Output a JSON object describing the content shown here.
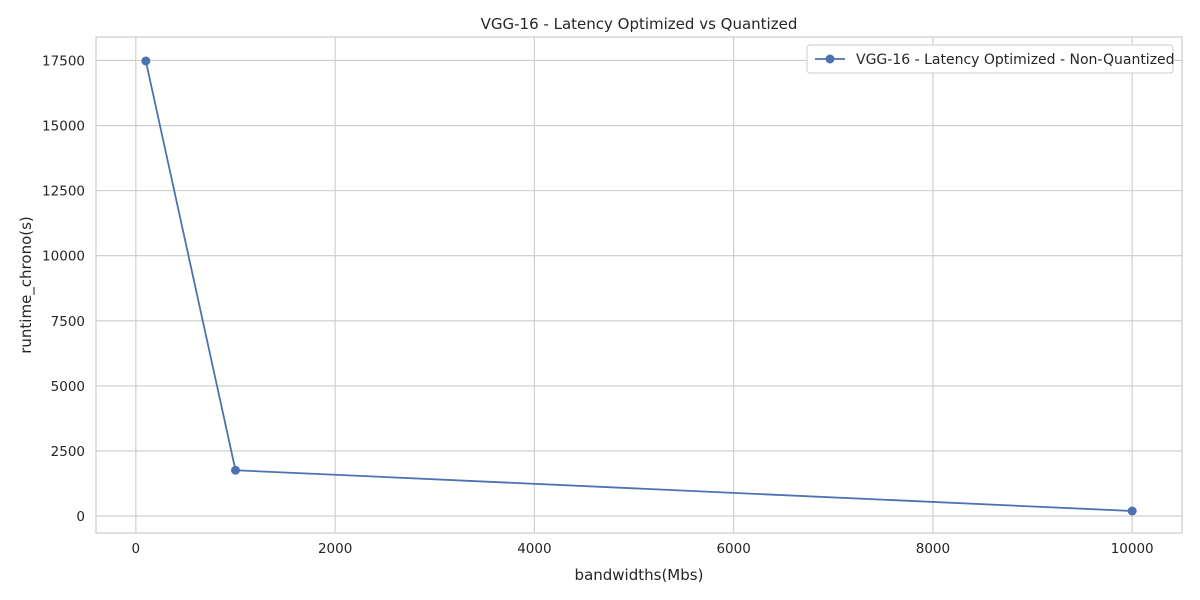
{
  "chart_data": {
    "type": "line",
    "title": "VGG-16 - Latency Optimized vs Quantized",
    "xlabel": "bandwidths(Mbs)",
    "ylabel": "runtime_chrono(s)",
    "xlim": [
      -400,
      10500
    ],
    "ylim": [
      -650,
      18400
    ],
    "xticks": [
      0,
      2000,
      4000,
      6000,
      8000,
      10000
    ],
    "yticks": [
      0,
      2500,
      5000,
      7500,
      10000,
      12500,
      15000,
      17500
    ],
    "grid": true,
    "legend_position": "top-right",
    "series": [
      {
        "name": "VGG-16 - Latency Optimized - Non-Quantized",
        "color": "#4c72b0",
        "marker": "circle",
        "x": [
          100,
          1000,
          10000
        ],
        "y": [
          17480,
          1760,
          195
        ]
      }
    ]
  }
}
